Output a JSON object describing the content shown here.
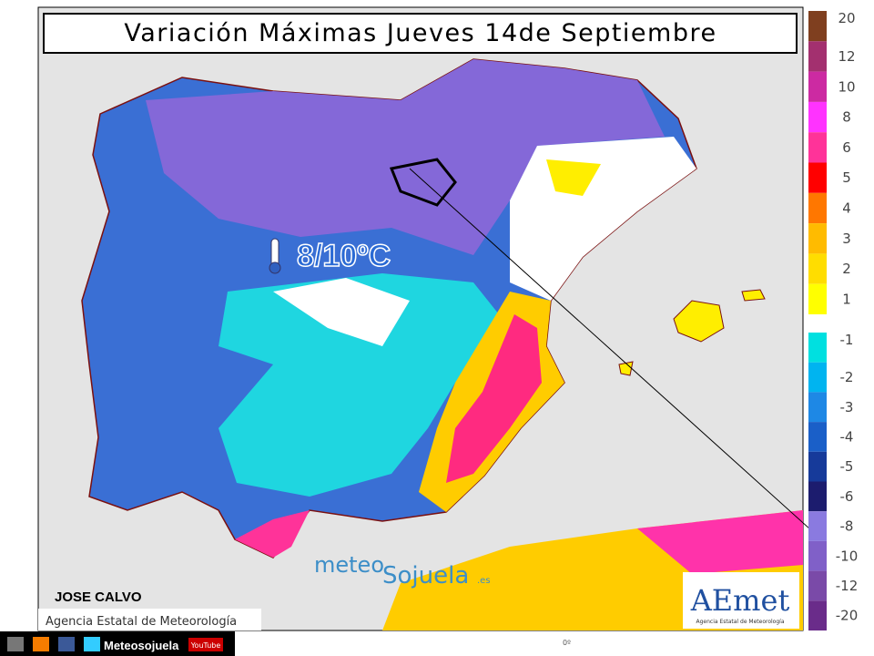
{
  "header": {
    "title": "Variación Máximas Jueves 14de Septiembre"
  },
  "annotation": {
    "temperature": "8/10ºC",
    "author": "JOSE CALVO",
    "source": "Agencia Estatal de Meteorología",
    "meridian": "0º"
  },
  "watermark": {
    "part1": "meteo",
    "part2": "Sojuela",
    "part3": ".es"
  },
  "logo": {
    "name": "AEmet",
    "subtitle": "Agencia Estatal de Meteorología"
  },
  "footer": {
    "site": "Meteosojuela",
    "video": "YouTube"
  },
  "legend": {
    "upper": [
      {
        "label": "20",
        "color": "#7f3f1f"
      },
      {
        "label": "12",
        "color": "#a3306f"
      },
      {
        "label": "10",
        "color": "#cc2aa2"
      },
      {
        "label": "8",
        "color": "#ff33ff"
      },
      {
        "label": "6",
        "color": "#ff3399"
      },
      {
        "label": "5",
        "color": "#ff0000"
      },
      {
        "label": "4",
        "color": "#ff7700"
      },
      {
        "label": "3",
        "color": "#ffbb00"
      },
      {
        "label": "2",
        "color": "#ffdd00"
      },
      {
        "label": "1",
        "color": "#ffff00"
      }
    ],
    "lower": [
      {
        "label": "-1",
        "color": "#00e0e0"
      },
      {
        "label": "-2",
        "color": "#00b4f0"
      },
      {
        "label": "-3",
        "color": "#1e88e5"
      },
      {
        "label": "-4",
        "color": "#1a5fc8"
      },
      {
        "label": "-5",
        "color": "#163a9a"
      },
      {
        "label": "-6",
        "color": "#1c1c6e"
      },
      {
        "label": "-8",
        "color": "#8a7ae0"
      },
      {
        "label": "-10",
        "color": "#8060c8"
      },
      {
        "label": "-12",
        "color": "#7a4aa8"
      },
      {
        "label": "-20",
        "color": "#6a2c8a"
      }
    ]
  }
}
